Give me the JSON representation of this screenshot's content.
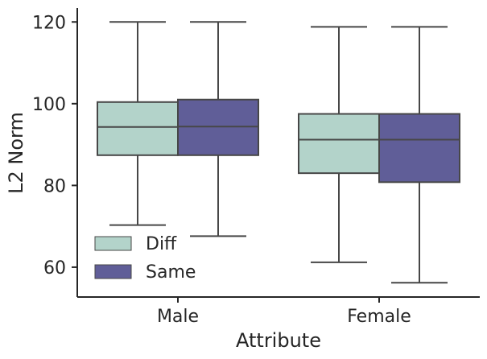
{
  "chart_data": {
    "type": "box",
    "title": "",
    "xlabel": "Attribute",
    "ylabel": "L2 Norm",
    "ylim": [
      52.7,
      123.4
    ],
    "yticks": [
      60,
      80,
      100,
      120
    ],
    "categories": [
      "Male",
      "Female"
    ],
    "grid": false,
    "legend_position": "lower-left",
    "series": [
      {
        "name": "Diff",
        "color": "#b3d3ca",
        "stats": [
          {
            "min": 70.3,
            "q1": 87.4,
            "median": 94.3,
            "q3": 100.4,
            "max": 120.0
          },
          {
            "min": 61.2,
            "q1": 83.0,
            "median": 91.2,
            "q3": 97.5,
            "max": 118.8
          }
        ]
      },
      {
        "name": "Same",
        "color": "#605e98",
        "stats": [
          {
            "min": 67.6,
            "q1": 87.4,
            "median": 94.4,
            "q3": 101.0,
            "max": 120.0
          },
          {
            "min": 56.2,
            "q1": 80.8,
            "median": 91.2,
            "q3": 97.5,
            "max": 118.8
          }
        ]
      }
    ]
  },
  "styles": {
    "line_color": "#474747",
    "axis_color": "#262626"
  }
}
